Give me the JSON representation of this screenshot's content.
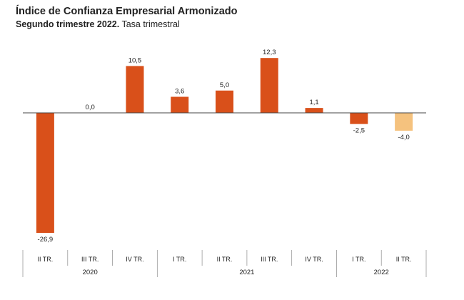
{
  "header": {
    "title": "Índice de Confianza Empresarial Armonizado",
    "subtitle_bold": "Segundo trimestre 2022.",
    "subtitle_rest": " Tasa trimestral"
  },
  "chart_data": {
    "type": "bar",
    "categories": [
      "II TR.",
      "III TR.",
      "IV TR.",
      "I TR.",
      "II TR.",
      "III TR.",
      "IV TR.",
      "I TR.",
      "II TR."
    ],
    "values": [
      -26.9,
      0.0,
      10.5,
      3.6,
      5.0,
      12.3,
      1.1,
      -2.5,
      -4.0
    ],
    "value_labels": [
      "-26,9",
      "0,0",
      "10,5",
      "3,6",
      "5,0",
      "12,3",
      "1,1",
      "-2,5",
      "-4,0"
    ],
    "years": [
      {
        "label": "2020",
        "from": 0,
        "to": 2
      },
      {
        "label": "2021",
        "from": 3,
        "to": 6
      },
      {
        "label": "2022",
        "from": 7,
        "to": 8
      }
    ],
    "ylim": [
      -28,
      14
    ],
    "colors": {
      "default": "#d9501a",
      "highlight": "#f5c27e",
      "axis": "#444444",
      "separator": "#999999"
    },
    "highlight_index": 8,
    "grid": false,
    "xlabel": "",
    "ylabel": ""
  }
}
